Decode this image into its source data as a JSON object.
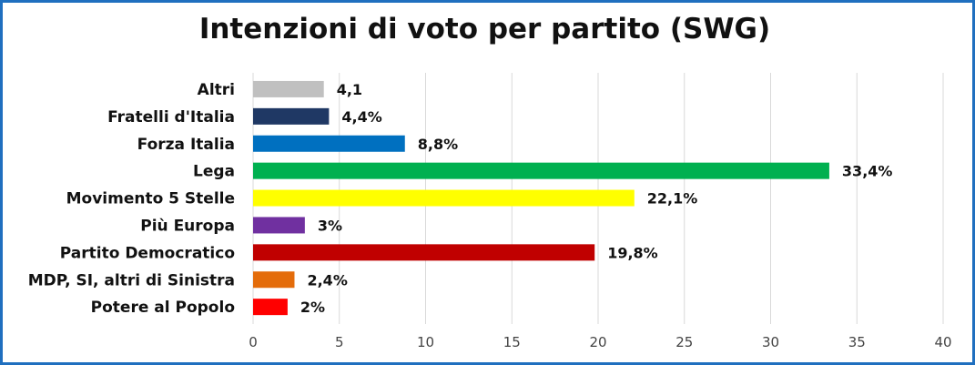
{
  "chart_data": {
    "type": "bar",
    "orientation": "horizontal",
    "title": "Intenzioni di voto per partito (SWG)",
    "categories": [
      "Altri",
      "Fratelli d'Italia",
      "Forza Italia",
      "Lega",
      "Movimento 5 Stelle",
      "Più Europa",
      "Partito Democratico",
      "MDP, SI, altri di Sinistra",
      "Potere al Popolo"
    ],
    "values": [
      4.1,
      4.4,
      8.8,
      33.4,
      22.1,
      3,
      19.8,
      2.4,
      2
    ],
    "value_labels": [
      "4,1",
      "4,4%",
      "8,8%",
      "33,4%",
      "22,1%",
      "3%",
      "19,8%",
      "2,4%",
      "2%"
    ],
    "colors": [
      "#c0c0c0",
      "#1f3864",
      "#0070c0",
      "#00b050",
      "#ffff00",
      "#7030a0",
      "#c00000",
      "#e46c0a",
      "#ff0000"
    ],
    "xlim": [
      0,
      40
    ],
    "xticks": [
      "0",
      "5",
      "10",
      "15",
      "20",
      "25",
      "30",
      "35",
      "40"
    ],
    "grid": true
  }
}
